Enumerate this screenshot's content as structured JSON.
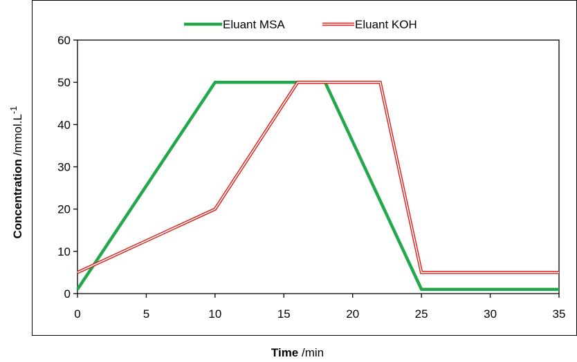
{
  "chart_data": {
    "type": "line",
    "title": "",
    "xlabel": {
      "bold": "Time",
      "unit": " /min"
    },
    "ylabel": {
      "bold": "Concentration",
      "unit": " /mmol.L",
      "superscript": "-1"
    },
    "xlim": [
      0,
      35
    ],
    "ylim": [
      0,
      60
    ],
    "xticks": [
      0,
      5,
      10,
      15,
      20,
      25,
      30,
      35
    ],
    "yticks": [
      0,
      10,
      20,
      30,
      40,
      50,
      60
    ],
    "grid": false,
    "legend_position": "top",
    "series": [
      {
        "name": "Eluant MSA",
        "color": "#22a84a",
        "style": "solid",
        "points": [
          [
            0,
            1
          ],
          [
            10,
            50
          ],
          [
            18,
            50
          ],
          [
            25,
            1
          ],
          [
            35,
            1
          ]
        ]
      },
      {
        "name": "Eluant KOH",
        "color": "#e0201b",
        "style": "double",
        "points": [
          [
            0,
            5
          ],
          [
            10,
            20
          ],
          [
            16,
            50
          ],
          [
            22,
            50
          ],
          [
            25,
            5
          ],
          [
            35,
            5
          ]
        ]
      }
    ]
  }
}
